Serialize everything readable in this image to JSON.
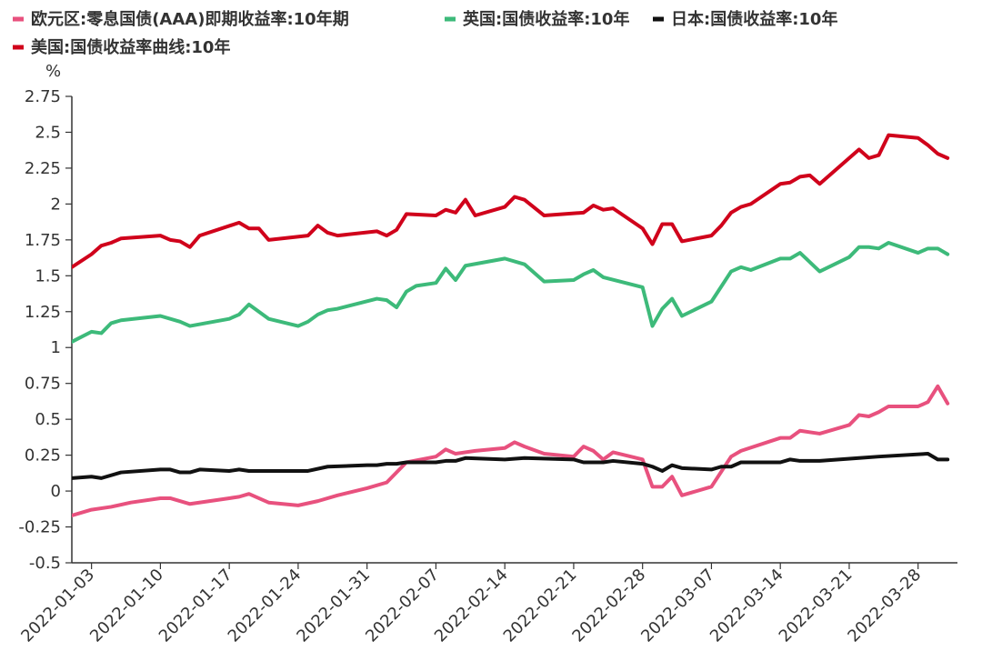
{
  "chart_data": {
    "type": "line",
    "ylabel": "%",
    "ylim": [
      -0.5,
      2.75
    ],
    "yticks": [
      "2.75",
      "2.5",
      "2.25",
      "2",
      "1.75",
      "1.5",
      "1.25",
      "1",
      "0.75",
      "0.5",
      "0.25",
      "0",
      "-0.25",
      "-0.5"
    ],
    "xlim": [
      "2022-01-01",
      "2022-04-01"
    ],
    "xticks": [
      "2022-01-03",
      "2022-01-10",
      "2022-01-17",
      "2022-01-24",
      "2022-01-31",
      "2022-02-07",
      "2022-02-14",
      "2022-02-21",
      "2022-02-28",
      "2022-03-07",
      "2022-03-14",
      "2022-03-21",
      "2022-03-28"
    ],
    "legend_position": "top-left",
    "grid": false,
    "series": [
      {
        "name": "欧元区:零息国债(AAA)即期收益率:10年期",
        "color": "#e8517e",
        "points": [
          [
            "2022-01-01",
            -0.17
          ],
          [
            "2022-01-03",
            -0.13
          ],
          [
            "2022-01-05",
            -0.11
          ],
          [
            "2022-01-07",
            -0.08
          ],
          [
            "2022-01-10",
            -0.05
          ],
          [
            "2022-01-11",
            -0.05
          ],
          [
            "2022-01-13",
            -0.09
          ],
          [
            "2022-01-15",
            -0.07
          ],
          [
            "2022-01-17",
            -0.05
          ],
          [
            "2022-01-18",
            -0.04
          ],
          [
            "2022-01-19",
            -0.02
          ],
          [
            "2022-01-21",
            -0.08
          ],
          [
            "2022-01-24",
            -0.1
          ],
          [
            "2022-01-26",
            -0.07
          ],
          [
            "2022-01-28",
            -0.03
          ],
          [
            "2022-01-31",
            0.02
          ],
          [
            "2022-02-02",
            0.06
          ],
          [
            "2022-02-04",
            0.2
          ],
          [
            "2022-02-07",
            0.24
          ],
          [
            "2022-02-08",
            0.29
          ],
          [
            "2022-02-09",
            0.26
          ],
          [
            "2022-02-11",
            0.28
          ],
          [
            "2022-02-14",
            0.3
          ],
          [
            "2022-02-15",
            0.34
          ],
          [
            "2022-02-16",
            0.31
          ],
          [
            "2022-02-18",
            0.26
          ],
          [
            "2022-02-21",
            0.24
          ],
          [
            "2022-02-22",
            0.31
          ],
          [
            "2022-02-23",
            0.28
          ],
          [
            "2022-02-24",
            0.22
          ],
          [
            "2022-02-25",
            0.27
          ],
          [
            "2022-02-28",
            0.22
          ],
          [
            "2022-03-01",
            0.03
          ],
          [
            "2022-03-02",
            0.03
          ],
          [
            "2022-03-03",
            0.1
          ],
          [
            "2022-03-04",
            -0.03
          ],
          [
            "2022-03-07",
            0.03
          ],
          [
            "2022-03-09",
            0.24
          ],
          [
            "2022-03-10",
            0.28
          ],
          [
            "2022-03-14",
            0.37
          ],
          [
            "2022-03-15",
            0.37
          ],
          [
            "2022-03-16",
            0.42
          ],
          [
            "2022-03-18",
            0.4
          ],
          [
            "2022-03-21",
            0.46
          ],
          [
            "2022-03-22",
            0.53
          ],
          [
            "2022-03-23",
            0.52
          ],
          [
            "2022-03-24",
            0.55
          ],
          [
            "2022-03-25",
            0.59
          ],
          [
            "2022-03-28",
            0.59
          ],
          [
            "2022-03-29",
            0.62
          ],
          [
            "2022-03-30",
            0.73
          ],
          [
            "2022-03-31",
            0.61
          ]
        ]
      },
      {
        "name": "英国:国债收益率:10年",
        "color": "#3dba7a",
        "points": [
          [
            "2022-01-01",
            1.04
          ],
          [
            "2022-01-03",
            1.11
          ],
          [
            "2022-01-04",
            1.1
          ],
          [
            "2022-01-05",
            1.17
          ],
          [
            "2022-01-06",
            1.19
          ],
          [
            "2022-01-10",
            1.22
          ],
          [
            "2022-01-12",
            1.18
          ],
          [
            "2022-01-13",
            1.15
          ],
          [
            "2022-01-17",
            1.2
          ],
          [
            "2022-01-18",
            1.23
          ],
          [
            "2022-01-19",
            1.3
          ],
          [
            "2022-01-21",
            1.2
          ],
          [
            "2022-01-24",
            1.15
          ],
          [
            "2022-01-25",
            1.18
          ],
          [
            "2022-01-26",
            1.23
          ],
          [
            "2022-01-27",
            1.26
          ],
          [
            "2022-01-28",
            1.27
          ],
          [
            "2022-02-01",
            1.34
          ],
          [
            "2022-02-02",
            1.33
          ],
          [
            "2022-02-03",
            1.28
          ],
          [
            "2022-02-04",
            1.39
          ],
          [
            "2022-02-05",
            1.43
          ],
          [
            "2022-02-07",
            1.45
          ],
          [
            "2022-02-08",
            1.55
          ],
          [
            "2022-02-09",
            1.47
          ],
          [
            "2022-02-10",
            1.57
          ],
          [
            "2022-02-14",
            1.62
          ],
          [
            "2022-02-16",
            1.58
          ],
          [
            "2022-02-18",
            1.46
          ],
          [
            "2022-02-21",
            1.47
          ],
          [
            "2022-02-22",
            1.51
          ],
          [
            "2022-02-23",
            1.54
          ],
          [
            "2022-02-24",
            1.49
          ],
          [
            "2022-02-28",
            1.42
          ],
          [
            "2022-03-01",
            1.15
          ],
          [
            "2022-03-02",
            1.27
          ],
          [
            "2022-03-03",
            1.34
          ],
          [
            "2022-03-04",
            1.22
          ],
          [
            "2022-03-07",
            1.32
          ],
          [
            "2022-03-09",
            1.53
          ],
          [
            "2022-03-10",
            1.56
          ],
          [
            "2022-03-11",
            1.54
          ],
          [
            "2022-03-14",
            1.62
          ],
          [
            "2022-03-15",
            1.62
          ],
          [
            "2022-03-16",
            1.66
          ],
          [
            "2022-03-18",
            1.53
          ],
          [
            "2022-03-21",
            1.63
          ],
          [
            "2022-03-22",
            1.7
          ],
          [
            "2022-03-23",
            1.7
          ],
          [
            "2022-03-24",
            1.69
          ],
          [
            "2022-03-25",
            1.73
          ],
          [
            "2022-03-28",
            1.66
          ],
          [
            "2022-03-29",
            1.69
          ],
          [
            "2022-03-30",
            1.69
          ],
          [
            "2022-03-31",
            1.65
          ]
        ]
      },
      {
        "name": "日本:国债收益率:10年",
        "color": "#111111",
        "points": [
          [
            "2022-01-01",
            0.09
          ],
          [
            "2022-01-03",
            0.1
          ],
          [
            "2022-01-04",
            0.09
          ],
          [
            "2022-01-06",
            0.13
          ],
          [
            "2022-01-10",
            0.15
          ],
          [
            "2022-01-11",
            0.15
          ],
          [
            "2022-01-12",
            0.13
          ],
          [
            "2022-01-13",
            0.13
          ],
          [
            "2022-01-14",
            0.15
          ],
          [
            "2022-01-17",
            0.14
          ],
          [
            "2022-01-18",
            0.15
          ],
          [
            "2022-01-19",
            0.14
          ],
          [
            "2022-01-20",
            0.14
          ],
          [
            "2022-01-24",
            0.14
          ],
          [
            "2022-01-25",
            0.14
          ],
          [
            "2022-01-27",
            0.17
          ],
          [
            "2022-01-31",
            0.18
          ],
          [
            "2022-02-01",
            0.18
          ],
          [
            "2022-02-02",
            0.19
          ],
          [
            "2022-02-03",
            0.19
          ],
          [
            "2022-02-04",
            0.2
          ],
          [
            "2022-02-07",
            0.2
          ],
          [
            "2022-02-08",
            0.21
          ],
          [
            "2022-02-09",
            0.21
          ],
          [
            "2022-02-10",
            0.23
          ],
          [
            "2022-02-14",
            0.22
          ],
          [
            "2022-02-16",
            0.23
          ],
          [
            "2022-02-21",
            0.22
          ],
          [
            "2022-02-22",
            0.2
          ],
          [
            "2022-02-24",
            0.2
          ],
          [
            "2022-02-25",
            0.21
          ],
          [
            "2022-02-28",
            0.19
          ],
          [
            "2022-03-01",
            0.17
          ],
          [
            "2022-03-02",
            0.14
          ],
          [
            "2022-03-03",
            0.18
          ],
          [
            "2022-03-04",
            0.16
          ],
          [
            "2022-03-07",
            0.15
          ],
          [
            "2022-03-08",
            0.17
          ],
          [
            "2022-03-09",
            0.17
          ],
          [
            "2022-03-10",
            0.2
          ],
          [
            "2022-03-14",
            0.2
          ],
          [
            "2022-03-15",
            0.22
          ],
          [
            "2022-03-16",
            0.21
          ],
          [
            "2022-03-18",
            0.21
          ],
          [
            "2022-03-22",
            0.23
          ],
          [
            "2022-03-24",
            0.24
          ],
          [
            "2022-03-29",
            0.26
          ],
          [
            "2022-03-30",
            0.22
          ],
          [
            "2022-03-31",
            0.22
          ]
        ]
      },
      {
        "name": "美国:国债收益率曲线:10年",
        "color": "#d0021b",
        "points": [
          [
            "2022-01-01",
            1.56
          ],
          [
            "2022-01-03",
            1.65
          ],
          [
            "2022-01-04",
            1.71
          ],
          [
            "2022-01-05",
            1.73
          ],
          [
            "2022-01-06",
            1.76
          ],
          [
            "2022-01-10",
            1.78
          ],
          [
            "2022-01-11",
            1.75
          ],
          [
            "2022-01-12",
            1.74
          ],
          [
            "2022-01-13",
            1.7
          ],
          [
            "2022-01-14",
            1.78
          ],
          [
            "2022-01-18",
            1.87
          ],
          [
            "2022-01-19",
            1.83
          ],
          [
            "2022-01-20",
            1.83
          ],
          [
            "2022-01-21",
            1.75
          ],
          [
            "2022-01-25",
            1.78
          ],
          [
            "2022-01-26",
            1.85
          ],
          [
            "2022-01-27",
            1.8
          ],
          [
            "2022-01-28",
            1.78
          ],
          [
            "2022-02-01",
            1.81
          ],
          [
            "2022-02-02",
            1.78
          ],
          [
            "2022-02-03",
            1.82
          ],
          [
            "2022-02-04",
            1.93
          ],
          [
            "2022-02-07",
            1.92
          ],
          [
            "2022-02-08",
            1.96
          ],
          [
            "2022-02-09",
            1.94
          ],
          [
            "2022-02-10",
            2.03
          ],
          [
            "2022-02-11",
            1.92
          ],
          [
            "2022-02-14",
            1.98
          ],
          [
            "2022-02-15",
            2.05
          ],
          [
            "2022-02-16",
            2.03
          ],
          [
            "2022-02-18",
            1.92
          ],
          [
            "2022-02-22",
            1.94
          ],
          [
            "2022-02-23",
            1.99
          ],
          [
            "2022-02-24",
            1.96
          ],
          [
            "2022-02-25",
            1.97
          ],
          [
            "2022-02-28",
            1.83
          ],
          [
            "2022-03-01",
            1.72
          ],
          [
            "2022-03-02",
            1.86
          ],
          [
            "2022-03-03",
            1.86
          ],
          [
            "2022-03-04",
            1.74
          ],
          [
            "2022-03-07",
            1.78
          ],
          [
            "2022-03-08",
            1.85
          ],
          [
            "2022-03-09",
            1.94
          ],
          [
            "2022-03-10",
            1.98
          ],
          [
            "2022-03-11",
            2.0
          ],
          [
            "2022-03-14",
            2.14
          ],
          [
            "2022-03-15",
            2.15
          ],
          [
            "2022-03-16",
            2.19
          ],
          [
            "2022-03-17",
            2.2
          ],
          [
            "2022-03-18",
            2.14
          ],
          [
            "2022-03-22",
            2.38
          ],
          [
            "2022-03-23",
            2.32
          ],
          [
            "2022-03-24",
            2.34
          ],
          [
            "2022-03-25",
            2.48
          ],
          [
            "2022-03-28",
            2.46
          ],
          [
            "2022-03-29",
            2.41
          ],
          [
            "2022-03-30",
            2.35
          ],
          [
            "2022-03-31",
            2.32
          ]
        ]
      }
    ]
  }
}
